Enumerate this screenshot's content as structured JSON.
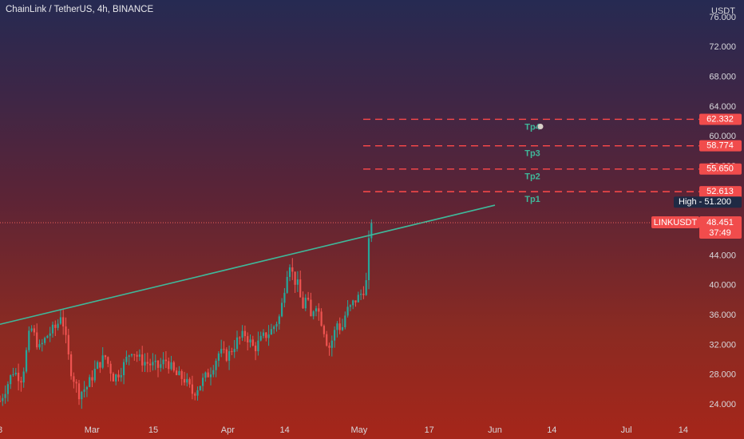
{
  "header": {
    "title": "ChainLink / TetherUS, 4h, BINANCE",
    "currency": "USDT"
  },
  "chart_data": {
    "type": "candlestick",
    "symbol": "LINKUSDT",
    "ylim": [
      21.5,
      77.5
    ],
    "y_ticks": [
      24.0,
      28.0,
      32.0,
      36.0,
      40.0,
      44.0,
      48.0,
      52.0,
      56.0,
      60.0,
      64.0,
      68.0,
      72.0,
      76.0
    ],
    "y_tick_labels": [
      "24.000",
      "28.000",
      "32.000",
      "36.000",
      "40.000",
      "44.000",
      "48.000",
      "52.000",
      "56.000",
      "60.000",
      "64.000",
      "68.000",
      "72.000",
      "76.000"
    ],
    "x_ticks": [
      {
        "label": "8",
        "date": "2021-02-08"
      },
      {
        "label": "Mar",
        "date": "2021-03-01"
      },
      {
        "label": "15",
        "date": "2021-03-15"
      },
      {
        "label": "Apr",
        "date": "2021-04-01"
      },
      {
        "label": "14",
        "date": "2021-04-14"
      },
      {
        "label": "May",
        "date": "2021-05-01"
      },
      {
        "label": "17",
        "date": "2021-05-17"
      },
      {
        "label": "Jun",
        "date": "2021-06-01"
      },
      {
        "label": "14",
        "date": "2021-06-14"
      },
      {
        "label": "Jul",
        "date": "2021-07-01"
      },
      {
        "label": "14",
        "date": "2021-07-14"
      }
    ],
    "price_path": [
      [
        "2021-02-08",
        24.5
      ],
      [
        "2021-02-11",
        28.5
      ],
      [
        "2021-02-13",
        27.5
      ],
      [
        "2021-02-15",
        34.5
      ],
      [
        "2021-02-17",
        31.5
      ],
      [
        "2021-02-19",
        33.5
      ],
      [
        "2021-02-21",
        34.5
      ],
      [
        "2021-02-22",
        36.5
      ],
      [
        "2021-02-24",
        29.0
      ],
      [
        "2021-02-26",
        25.5
      ],
      [
        "2021-02-28",
        26.5
      ],
      [
        "2021-03-02",
        29.0
      ],
      [
        "2021-03-04",
        30.5
      ],
      [
        "2021-03-06",
        27.5
      ],
      [
        "2021-03-08",
        29.0
      ],
      [
        "2021-03-10",
        31.5
      ],
      [
        "2021-03-12",
        30.0
      ],
      [
        "2021-03-14",
        29.5
      ],
      [
        "2021-03-16",
        29.0
      ],
      [
        "2021-03-18",
        30.0
      ],
      [
        "2021-03-20",
        28.0
      ],
      [
        "2021-03-22",
        27.5
      ],
      [
        "2021-03-24",
        25.5
      ],
      [
        "2021-03-26",
        27.0
      ],
      [
        "2021-03-28",
        28.5
      ],
      [
        "2021-03-30",
        31.0
      ],
      [
        "2021-04-01",
        30.5
      ],
      [
        "2021-04-03",
        32.5
      ],
      [
        "2021-04-05",
        33.5
      ],
      [
        "2021-04-07",
        31.5
      ],
      [
        "2021-04-09",
        33.0
      ],
      [
        "2021-04-11",
        34.0
      ],
      [
        "2021-04-13",
        36.0
      ],
      [
        "2021-04-14",
        40.0
      ],
      [
        "2021-04-15",
        43.5
      ],
      [
        "2021-04-16",
        41.0
      ],
      [
        "2021-04-17",
        40.0
      ],
      [
        "2021-04-18",
        37.0
      ],
      [
        "2021-04-19",
        38.5
      ],
      [
        "2021-04-20",
        35.5
      ],
      [
        "2021-04-21",
        38.0
      ],
      [
        "2021-04-22",
        36.0
      ],
      [
        "2021-04-23",
        34.0
      ],
      [
        "2021-04-24",
        31.5
      ],
      [
        "2021-04-25",
        33.0
      ],
      [
        "2021-04-26",
        35.0
      ],
      [
        "2021-04-27",
        34.0
      ],
      [
        "2021-04-28",
        36.5
      ],
      [
        "2021-04-29",
        37.0
      ],
      [
        "2021-04-30",
        38.0
      ],
      [
        "2021-05-01",
        38.5
      ],
      [
        "2021-05-02",
        39.5
      ],
      [
        "2021-05-03",
        41.0
      ],
      [
        "2021-05-03",
        44.5
      ],
      [
        "2021-05-04",
        50.0
      ],
      [
        "2021-05-04",
        48.451
      ]
    ],
    "trendline": {
      "from": {
        "date": "2021-02-08",
        "value": 34.8
      },
      "to": {
        "date": "2021-06-01",
        "value": 50.8
      }
    },
    "target_levels": [
      {
        "label": "Tp1",
        "value": 52.613
      },
      {
        "label": "Tp2",
        "value": 55.65
      },
      {
        "label": "Tp3",
        "value": 58.774
      },
      {
        "label": "Tp4",
        "value": 62.332
      }
    ],
    "target_value_labels": [
      "52.613",
      "55.650",
      "58.774",
      "62.332"
    ],
    "high": {
      "label": "High",
      "value": 51.2,
      "value_label": "51.200"
    },
    "last": {
      "symbol": "LINKUSDT",
      "value": 48.451,
      "value_label": "48.451",
      "countdown": "37:49"
    },
    "colors": {
      "up": "#26a69a",
      "down": "#ef5350",
      "trendline": "#3fb89a",
      "target": "#ff4a4a",
      "target_text": "#3fb89a"
    }
  }
}
